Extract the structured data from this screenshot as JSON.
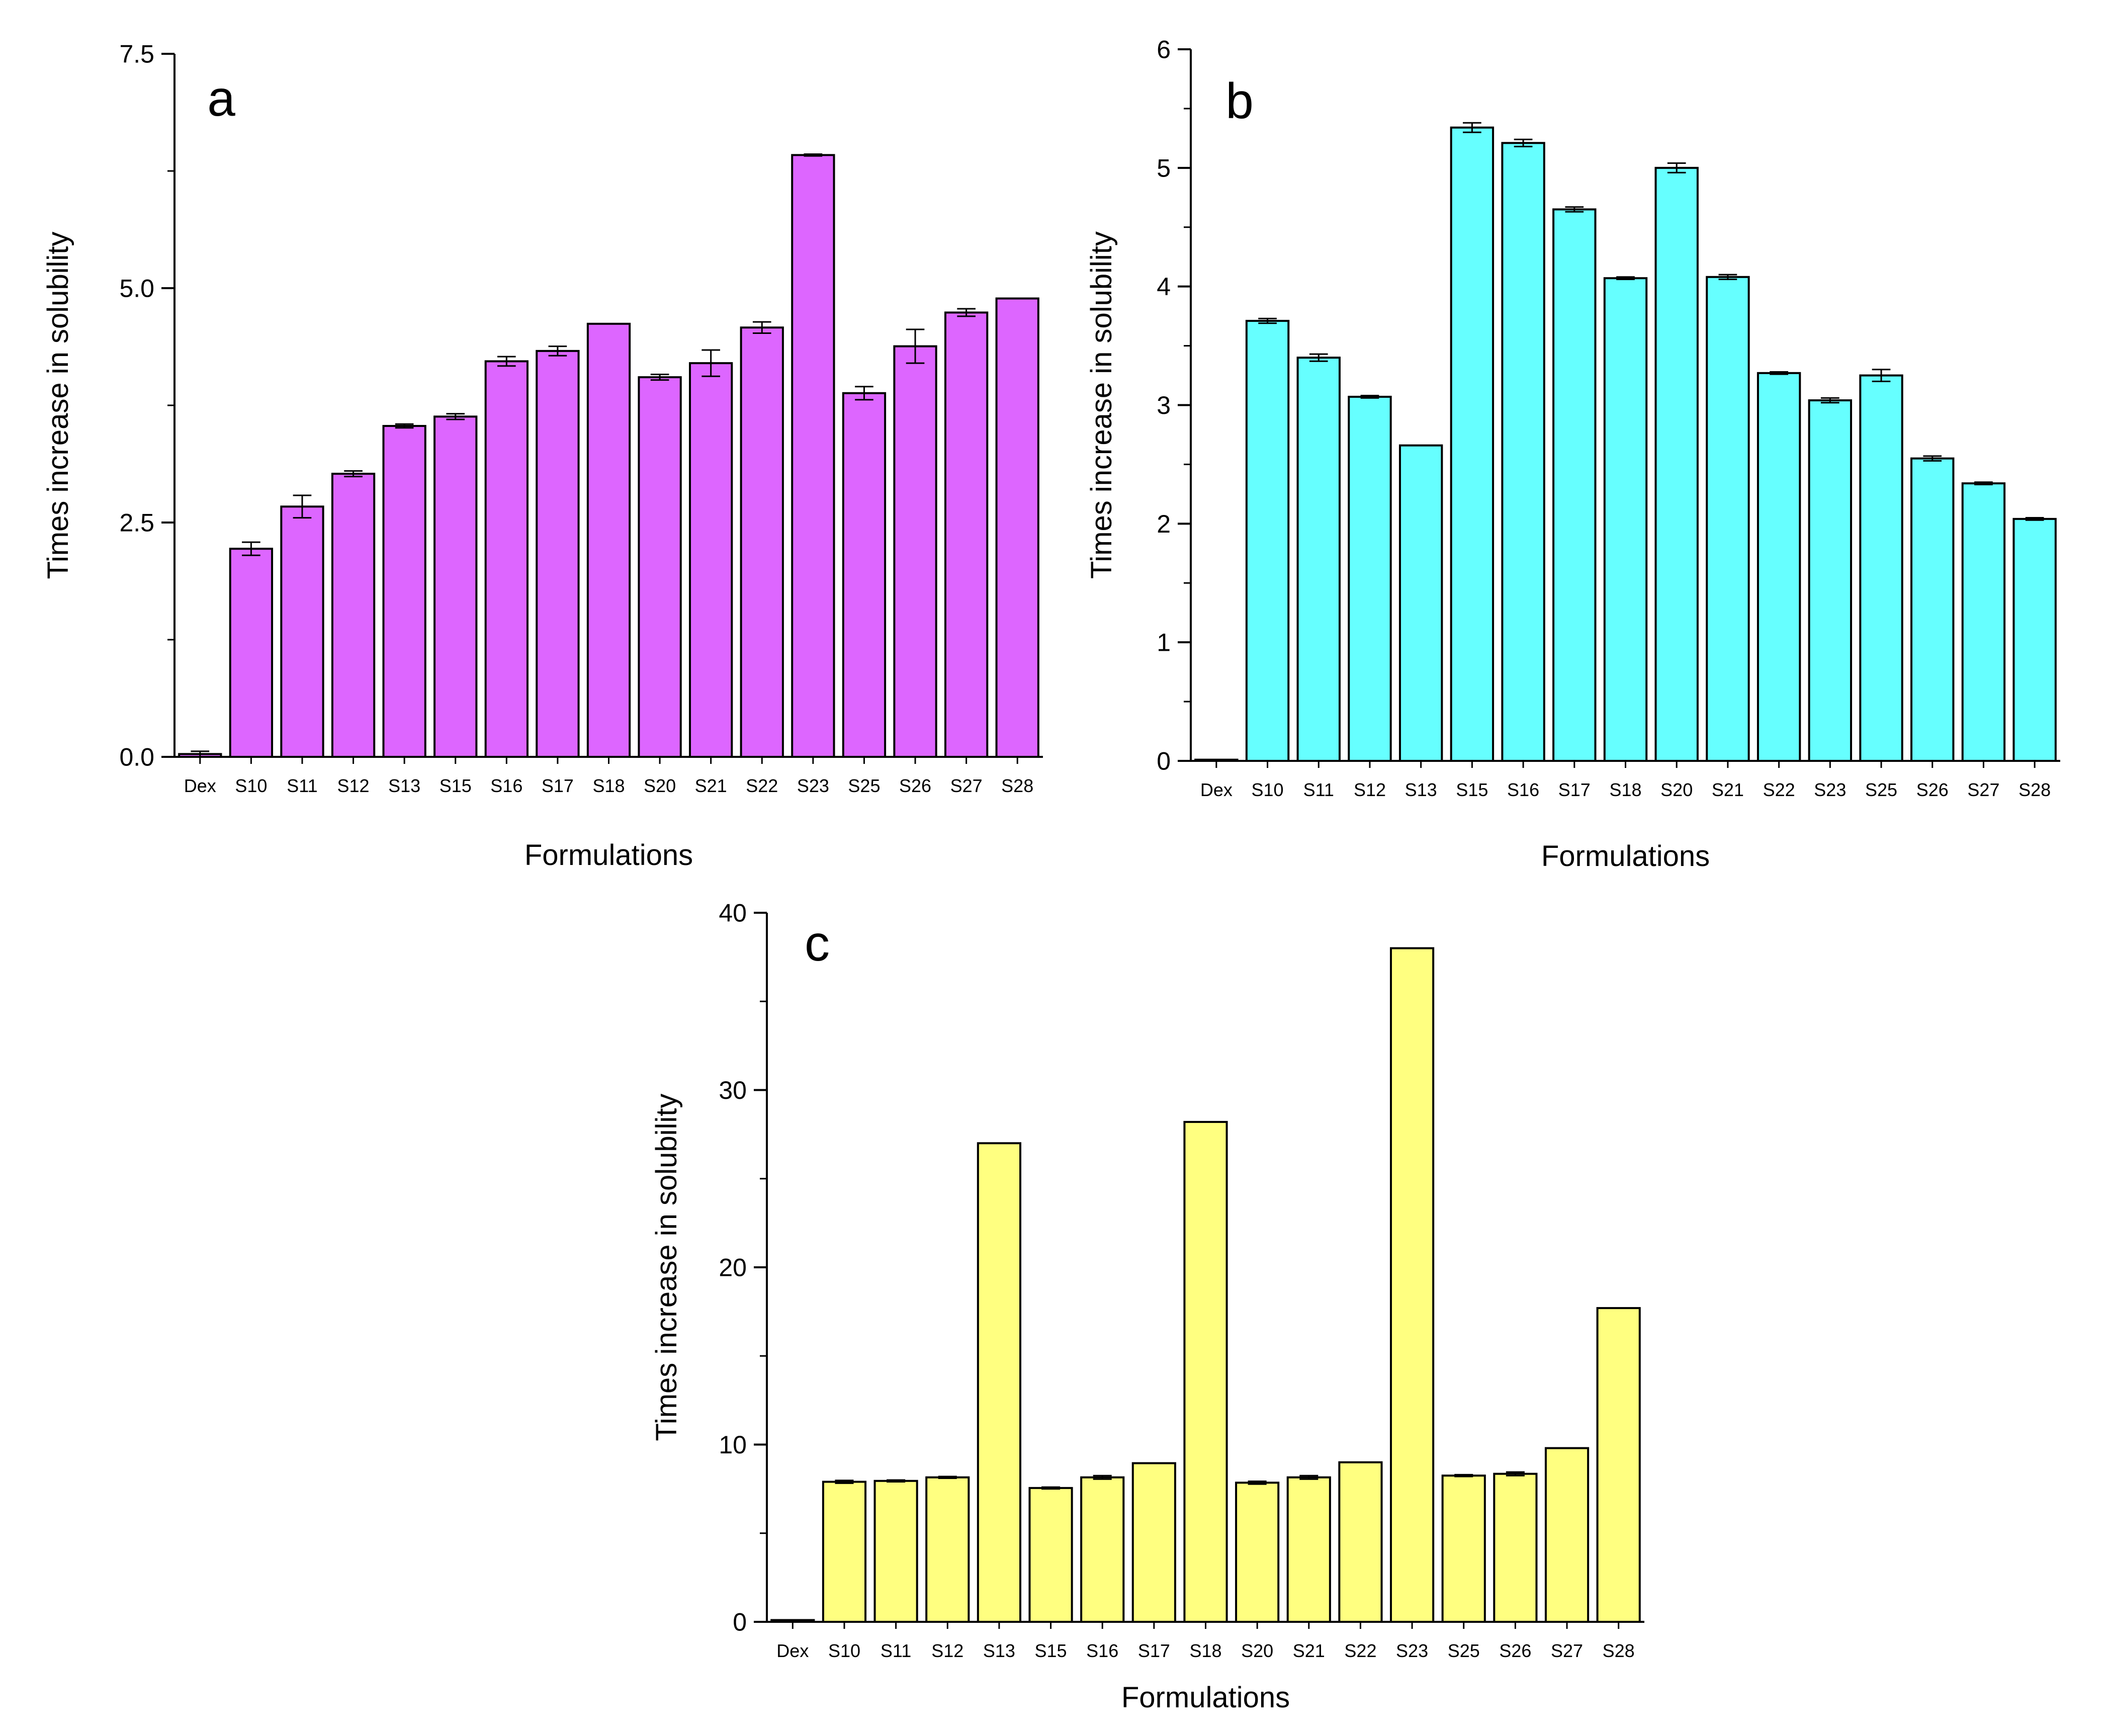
{
  "figure": {
    "description_free": true
  },
  "colors": {
    "panel_a": "#dd66ff",
    "panel_b": "#66ffff",
    "panel_c": "#ffff80",
    "axis": "#000000",
    "background": "#ffffff"
  },
  "chart_data": [
    {
      "id": "a",
      "type": "bar",
      "panel_label": "a",
      "xlabel": "Formulations",
      "ylabel": "Times increase in solubility",
      "ylim": [
        0,
        7.5
      ],
      "yticks": [
        0,
        2.5,
        5.0,
        7.5
      ],
      "ytick_labels": [
        "0.0",
        "2.5",
        "5.0",
        "7.5"
      ],
      "categories": [
        "Dex",
        "S10",
        "S11",
        "S12",
        "S13",
        "S15",
        "S16",
        "S17",
        "S18",
        "S20",
        "S21",
        "S22",
        "S23",
        "S25",
        "S26",
        "S27",
        "S28"
      ],
      "values": [
        0.03,
        2.22,
        2.67,
        3.02,
        3.53,
        3.63,
        4.22,
        4.33,
        4.62,
        4.05,
        4.2,
        4.58,
        6.42,
        3.88,
        4.38,
        4.74,
        4.89
      ],
      "errors": [
        0.03,
        0.07,
        0.12,
        0.03,
        0.02,
        0.03,
        0.05,
        0.05,
        0.0,
        0.03,
        0.14,
        0.06,
        0.01,
        0.07,
        0.18,
        0.04,
        0.0
      ]
    },
    {
      "id": "b",
      "type": "bar",
      "panel_label": "b",
      "xlabel": "Formulations",
      "ylabel": "Times increase in solubility",
      "ylim": [
        0,
        6
      ],
      "yticks": [
        0,
        1,
        2,
        3,
        4,
        5,
        6
      ],
      "ytick_labels": [
        "0",
        "1",
        "2",
        "3",
        "4",
        "5",
        "6"
      ],
      "categories": [
        "Dex",
        "S10",
        "S11",
        "S12",
        "S13",
        "S15",
        "S16",
        "S17",
        "S18",
        "S20",
        "S21",
        "S22",
        "S23",
        "S25",
        "S26",
        "S27",
        "S28"
      ],
      "values": [
        0.01,
        3.71,
        3.4,
        3.07,
        2.66,
        5.34,
        5.21,
        4.65,
        4.07,
        5.0,
        4.08,
        3.27,
        3.04,
        3.25,
        2.55,
        2.34,
        2.04
      ],
      "errors": [
        0.0,
        0.02,
        0.03,
        0.01,
        0.0,
        0.04,
        0.03,
        0.02,
        0.01,
        0.04,
        0.02,
        0.01,
        0.02,
        0.05,
        0.02,
        0.01,
        0.01
      ]
    },
    {
      "id": "c",
      "type": "bar",
      "panel_label": "c",
      "xlabel": "Formulations",
      "ylabel": "Times increase in solubility",
      "ylim": [
        0,
        40
      ],
      "yticks": [
        0,
        10,
        20,
        30,
        40
      ],
      "ytick_labels": [
        "0",
        "10",
        "20",
        "30",
        "40"
      ],
      "categories": [
        "Dex",
        "S10",
        "S11",
        "S12",
        "S13",
        "S15",
        "S16",
        "S17",
        "S18",
        "S20",
        "S21",
        "S22",
        "S23",
        "S25",
        "S26",
        "S27",
        "S28"
      ],
      "values": [
        0.1,
        7.9,
        7.95,
        8.15,
        27.0,
        7.55,
        8.15,
        8.95,
        28.2,
        7.85,
        8.15,
        9.0,
        38.0,
        8.25,
        8.35,
        9.8,
        17.7
      ],
      "errors": [
        0.0,
        0.08,
        0.05,
        0.05,
        0.0,
        0.05,
        0.1,
        0.0,
        0.0,
        0.08,
        0.1,
        0.0,
        0.0,
        0.05,
        0.1,
        0.0,
        0.0
      ]
    }
  ]
}
